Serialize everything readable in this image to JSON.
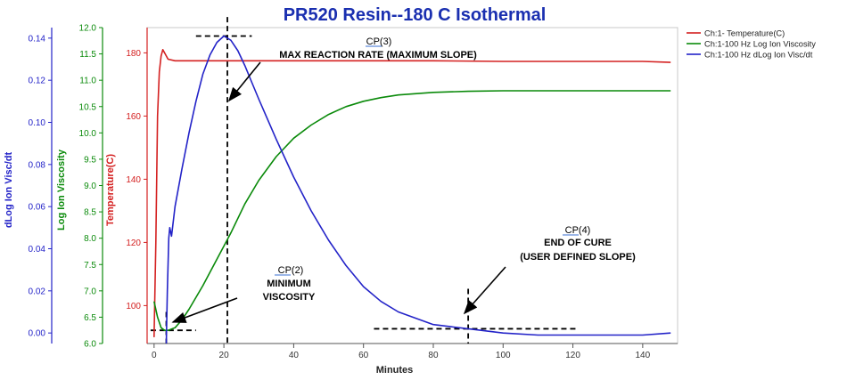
{
  "chart_data": {
    "type": "line",
    "title": "PR520 Resin--180 C Isothermal",
    "xlabel": "Minutes",
    "xlim": [
      -2,
      150
    ],
    "x_ticks": [
      "0",
      "20",
      "40",
      "60",
      "80",
      "100",
      "120",
      "140"
    ],
    "x_tick_values": [
      0,
      20,
      40,
      60,
      80,
      100,
      120,
      140
    ],
    "axes": [
      {
        "id": "dlog",
        "label": "dLog Ion Visc/dt",
        "color": "#2323c8",
        "lim": [
          -0.005,
          0.145
        ],
        "ticks": [
          "0.00",
          "0.02",
          "0.04",
          "0.06",
          "0.08",
          "0.10",
          "0.12",
          "0.14"
        ],
        "tick_values": [
          0,
          0.02,
          0.04,
          0.06,
          0.08,
          0.1,
          0.12,
          0.14
        ]
      },
      {
        "id": "logvisc",
        "label": "Log Ion Viscosity",
        "color": "#0a8a0a",
        "lim": [
          6.0,
          12.0
        ],
        "ticks": [
          "6.0",
          "6.5",
          "7.0",
          "7.5",
          "8.0",
          "8.5",
          "9.0",
          "9.5",
          "10.0",
          "10.5",
          "11.0",
          "11.5",
          "12.0"
        ],
        "tick_values": [
          6.0,
          6.5,
          7.0,
          7.5,
          8.0,
          8.5,
          9.0,
          9.5,
          10.0,
          10.5,
          11.0,
          11.5,
          12.0
        ]
      },
      {
        "id": "temp",
        "label": "Temperature(C)",
        "color": "#d42020",
        "lim": [
          88,
          188
        ],
        "ticks": [
          "100",
          "120",
          "140",
          "160",
          "180"
        ],
        "tick_values": [
          100,
          120,
          140,
          160,
          180
        ]
      }
    ],
    "legend_position": "top-right",
    "series": [
      {
        "name": "Ch:1- Temperature(C)",
        "axis": "temp",
        "color": "#d42020",
        "x": [
          0,
          0.5,
          1,
          1.5,
          2,
          2.5,
          3,
          4,
          6,
          10,
          20,
          40,
          60,
          80,
          100,
          120,
          140,
          148
        ],
        "y": [
          90,
          120,
          160,
          174,
          179,
          181,
          180,
          178,
          177.5,
          177.5,
          177.5,
          177.5,
          177.5,
          177.5,
          177.3,
          177.3,
          177.3,
          177.0
        ]
      },
      {
        "name": "Ch:1-100 Hz Log Ion Viscosity",
        "axis": "logvisc",
        "color": "#0a8a0a",
        "x": [
          0,
          1,
          2,
          3,
          4,
          6,
          8,
          10,
          14,
          18,
          22,
          26,
          30,
          35,
          40,
          45,
          50,
          55,
          60,
          65,
          70,
          80,
          90,
          100,
          120,
          148
        ],
        "y": [
          6.8,
          6.5,
          6.3,
          6.25,
          6.25,
          6.3,
          6.45,
          6.65,
          7.1,
          7.6,
          8.1,
          8.65,
          9.1,
          9.55,
          9.9,
          10.15,
          10.35,
          10.5,
          10.6,
          10.67,
          10.72,
          10.77,
          10.79,
          10.8,
          10.8,
          10.8
        ]
      },
      {
        "name": "Ch:1-100 Hz dLog Ion Visc/dt",
        "axis": "dlog",
        "color": "#2323c8",
        "x": [
          3.5,
          3.8,
          4.2,
          4.5,
          5,
          6,
          8,
          10,
          12,
          14,
          16,
          18,
          20,
          22,
          24,
          26,
          28,
          30,
          35,
          40,
          45,
          50,
          55,
          60,
          65,
          70,
          75,
          80,
          85,
          90,
          95,
          100,
          110,
          120,
          130,
          140,
          148
        ],
        "y": [
          -0.005,
          0.02,
          0.045,
          0.05,
          0.046,
          0.06,
          0.078,
          0.095,
          0.11,
          0.123,
          0.132,
          0.138,
          0.141,
          0.139,
          0.134,
          0.127,
          0.119,
          0.111,
          0.092,
          0.074,
          0.058,
          0.044,
          0.032,
          0.022,
          0.015,
          0.01,
          0.007,
          0.004,
          0.003,
          0.002,
          0.001,
          0.0,
          -0.001,
          -0.001,
          -0.001,
          -0.001,
          0.0
        ]
      }
    ],
    "annotations": [
      {
        "tag": "CP(3)",
        "lines": [
          "MAX REACTION RATE (MAXIMUM SLOPE)"
        ]
      },
      {
        "tag": "CP(2)",
        "lines": [
          "MINIMUM",
          "VISCOSITY"
        ]
      },
      {
        "tag": "CP(4)",
        "lines": [
          "END OF CURE",
          "(USER DEFINED SLOPE)"
        ]
      }
    ]
  }
}
